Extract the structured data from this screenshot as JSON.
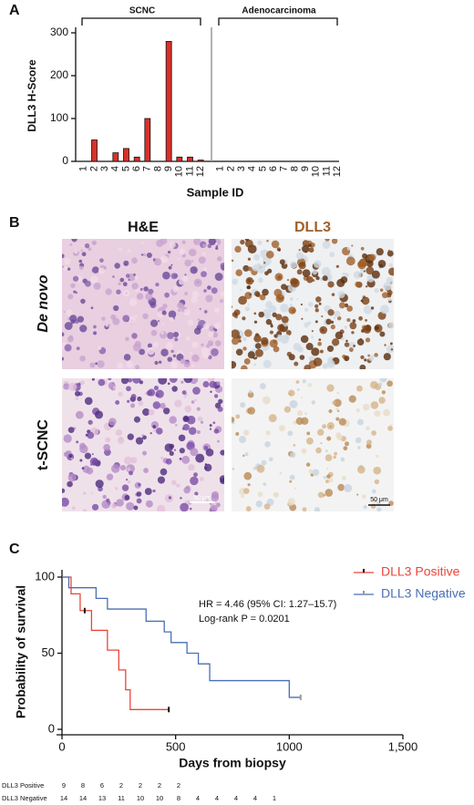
{
  "panels": [
    "A",
    "B",
    "C"
  ],
  "images": {
    "columns": [
      "H&E",
      "DLL3"
    ],
    "rows": [
      "De novo",
      "t-SCNC"
    ],
    "scale_bar": "50 μm"
  },
  "chart_data": [
    {
      "type": "bar",
      "y_label": "DLL3 H-Score",
      "x_label": "Sample ID",
      "categories": [
        "1",
        "2",
        "3",
        "4",
        "5",
        "6",
        "7",
        "8",
        "9",
        "10",
        "11",
        "12"
      ],
      "series": [
        {
          "name": "SCNC",
          "color": "#d9312a",
          "values": [
            0,
            50,
            0,
            20,
            30,
            10,
            100,
            0,
            280,
            10,
            10,
            3
          ]
        },
        {
          "name": "Adenocarcinoma",
          "color": "#d9312a",
          "values": [
            0,
            0,
            0,
            0,
            0,
            0,
            0,
            0,
            0,
            0,
            0,
            0
          ]
        }
      ],
      "ylim": [
        0,
        300
      ],
      "yticks": [
        0,
        100,
        200,
        300
      ]
    },
    {
      "type": "step",
      "y_label": "Probability of survival",
      "x_label": "Days from biopsy",
      "xlim": [
        0,
        1500
      ],
      "xticks": [
        0,
        500,
        1000,
        {
          "value": 1500,
          "label": "1,500"
        }
      ],
      "ylim": [
        0,
        100
      ],
      "yticks": [
        0,
        50,
        100
      ],
      "annotations": [
        "HR = 4.46 (95% CI: 1.27–15.7)",
        "Log-rank P = 0.0201"
      ],
      "series": [
        {
          "name": "DLL3 Positive",
          "color": "#e8463a",
          "x": [
            0,
            40,
            80,
            130,
            200,
            250,
            280,
            300,
            470
          ],
          "values": [
            100,
            89,
            78,
            65,
            52,
            39,
            26,
            13,
            13
          ],
          "censor_x": [
            100,
            470
          ],
          "at_risk": [
            9,
            8,
            6,
            2,
            2,
            2,
            2
          ]
        },
        {
          "name": "DLL3 Negative",
          "color": "#4a6fb5",
          "x": [
            0,
            30,
            150,
            200,
            370,
            450,
            480,
            550,
            600,
            650,
            1000,
            1050
          ],
          "values": [
            100,
            93,
            86,
            79,
            71,
            64,
            57,
            50,
            43,
            32,
            21,
            21
          ],
          "censor_x": [
            1050
          ],
          "at_risk": [
            14,
            14,
            13,
            11,
            10,
            10,
            8,
            4,
            4,
            4,
            4,
            1
          ]
        }
      ]
    }
  ]
}
